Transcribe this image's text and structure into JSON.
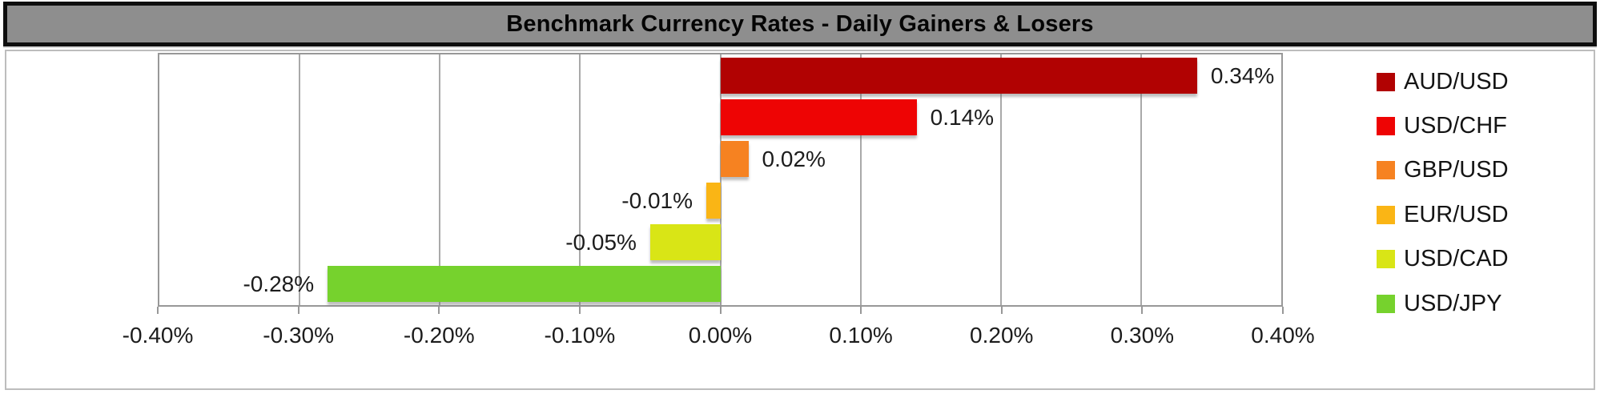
{
  "title": "Benchmark Currency Rates - Daily Gainers & Losers",
  "colors": {
    "title_bg": "#8e8e8e",
    "title_border": "#0e0e0e",
    "gridline": "#a9a9a9",
    "plot_border": "#989898",
    "text": "#1c1c1c"
  },
  "chart_data": {
    "type": "bar",
    "orientation": "horizontal",
    "title": "Benchmark Currency Rates - Daily Gainers & Losers",
    "categories": [
      "AUD/USD",
      "USD/CHF",
      "GBP/USD",
      "EUR/USD",
      "USD/CAD",
      "USD/JPY"
    ],
    "values": [
      0.34,
      0.14,
      0.02,
      -0.01,
      -0.05,
      -0.28
    ],
    "value_labels": [
      "0.34%",
      "0.14%",
      "0.02%",
      "-0.01%",
      "-0.05%",
      "-0.28%"
    ],
    "bar_colors": [
      "#b10202",
      "#ee0404",
      "#f68221",
      "#fab515",
      "#d9e516",
      "#76d22d"
    ],
    "xlim": [
      -0.4,
      0.4
    ],
    "x_ticks": [
      -0.4,
      -0.3,
      -0.2,
      -0.1,
      0.0,
      0.1,
      0.2,
      0.3,
      0.4
    ],
    "x_tick_labels": [
      "-0.40%",
      "-0.30%",
      "-0.20%",
      "-0.10%",
      "0.00%",
      "0.10%",
      "0.20%",
      "0.30%",
      "0.40%"
    ],
    "grid": true,
    "legend_position": "right",
    "legend": [
      "AUD/USD",
      "USD/CHF",
      "GBP/USD",
      "EUR/USD",
      "USD/CAD",
      "USD/JPY"
    ]
  }
}
